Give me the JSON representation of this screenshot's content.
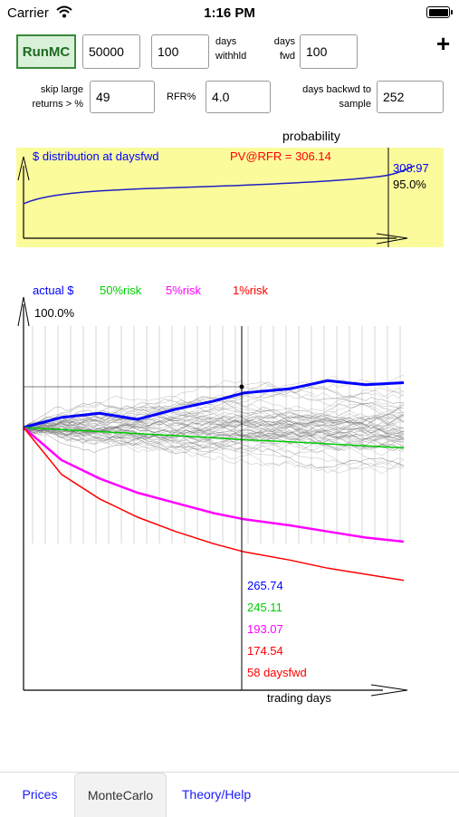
{
  "status_bar": {
    "carrier": "Carrier",
    "time": "1:16 PM"
  },
  "controls": {
    "run_button": "RunMC",
    "amount": "50000",
    "days_withheld": "100",
    "days_withheld_label_1": "days",
    "days_withheld_label_2": "withhld",
    "days_fwd_label_1": "days",
    "days_fwd_label_2": "fwd",
    "days_fwd": "100",
    "skip_label_1": "skip large",
    "skip_label_2": "returns > %",
    "skip_value": "49",
    "rfr_label": "RFR%",
    "rfr_value": "4.0",
    "days_backwd_label_1": "days backwd to",
    "days_backwd_label_2": "sample",
    "days_backwd_value": "252",
    "add_icon": "plus-icon"
  },
  "distribution_chart": {
    "probability_label": "probability",
    "title": "$ distribution at daysfwd",
    "pv_label": "PV@RFR = 306.14",
    "cursor_value": "308.97",
    "cursor_percent": "95.0%",
    "accent_blue": "#0000ff",
    "accent_red": "#ff0000",
    "background": "#fbfb9c"
  },
  "chart_data": {
    "type": "line",
    "xlabel": "trading days",
    "legend": [
      "actual $",
      "50%risk",
      "5%risk",
      "1%risk"
    ],
    "legend_colors": [
      "#0000ff",
      "#00cc00",
      "#ff00ff",
      "#ff0000"
    ],
    "top_percent": "100.0%",
    "readouts": [
      "265.74",
      "245.11",
      "193.07",
      "174.54",
      "58 daysfwd"
    ],
    "readout_colors": [
      "#0000ff",
      "#00cc00",
      "#ff00ff",
      "#ff0000",
      "#ff0000"
    ],
    "x": [
      0,
      10,
      20,
      30,
      40,
      50,
      58,
      70,
      80,
      90,
      100
    ],
    "series": [
      {
        "name": "actual $",
        "values": [
          245,
          250,
          252,
          249,
          254,
          258,
          262,
          264,
          268,
          266,
          267
        ]
      },
      {
        "name": "50%risk",
        "values": [
          245,
          244,
          243,
          242,
          241,
          240,
          239,
          238,
          237,
          236,
          235
        ]
      },
      {
        "name": "5%risk",
        "values": [
          245,
          229,
          220,
          213,
          208,
          203,
          200,
          197,
          194,
          191,
          189
        ]
      },
      {
        "name": "1%risk",
        "values": [
          245,
          222,
          210,
          201,
          194,
          188,
          184,
          180,
          176,
          173,
          170
        ]
      }
    ]
  },
  "tabs": [
    {
      "label": "Prices",
      "active": false
    },
    {
      "label": "MonteCarlo",
      "active": true
    },
    {
      "label": "Theory/Help",
      "active": false
    }
  ]
}
